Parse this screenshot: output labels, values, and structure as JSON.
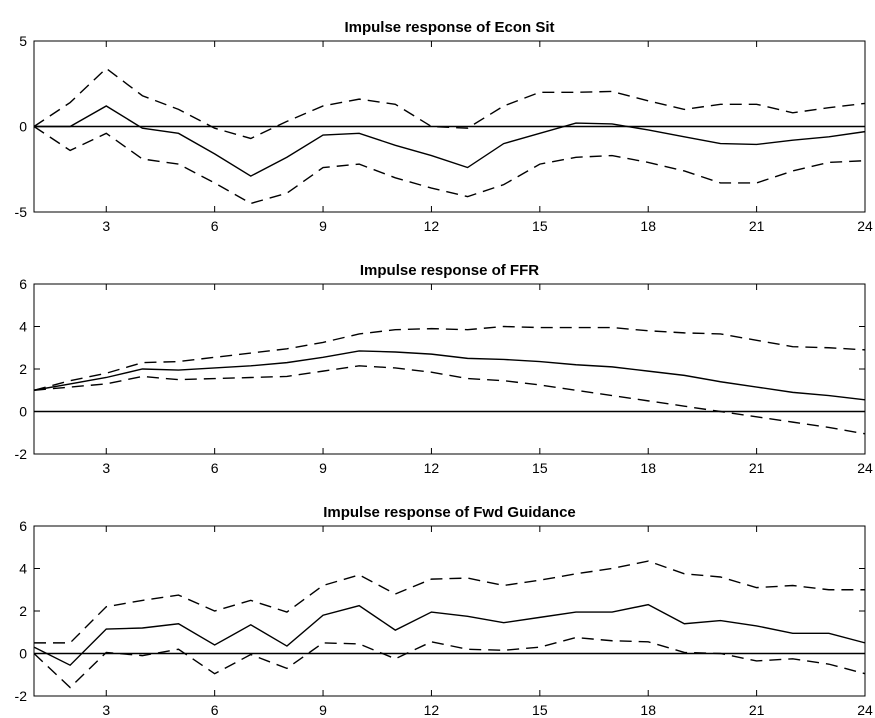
{
  "chart_data": [
    {
      "type": "line",
      "title": "Impulse response of Econ Sit",
      "xlabel": "",
      "ylabel": "",
      "xlim": [
        1,
        24
      ],
      "ylim": [
        -5,
        5
      ],
      "xticks": [
        3,
        6,
        9,
        12,
        15,
        18,
        21,
        24
      ],
      "yticks": [
        -5,
        0,
        5
      ],
      "zero_line": true,
      "grid": false,
      "x": [
        1,
        2,
        3,
        4,
        5,
        6,
        7,
        8,
        9,
        10,
        11,
        12,
        13,
        14,
        15,
        16,
        17,
        18,
        19,
        20,
        21,
        22,
        23,
        24
      ],
      "series": [
        {
          "style": "solid",
          "values": [
            0,
            0,
            1.2,
            -0.1,
            -0.4,
            -1.6,
            -2.9,
            -1.8,
            -0.5,
            -0.4,
            -1.1,
            -1.7,
            -2.4,
            -1.0,
            -0.4,
            0.2,
            0.15,
            -0.2,
            -0.6,
            -1.0,
            -1.05,
            -0.8,
            -0.6,
            -0.3
          ]
        },
        {
          "style": "dashed",
          "values": [
            0,
            1.4,
            3.4,
            1.8,
            1.0,
            -0.1,
            -0.7,
            0.3,
            1.2,
            1.6,
            1.3,
            0.0,
            -0.1,
            1.2,
            2.0,
            2.0,
            2.05,
            1.5,
            1.0,
            1.3,
            1.3,
            0.8,
            1.1,
            1.35
          ]
        },
        {
          "style": "dashed",
          "values": [
            0,
            -1.4,
            -0.4,
            -1.9,
            -2.2,
            -3.3,
            -4.5,
            -3.9,
            -2.4,
            -2.2,
            -3.0,
            -3.6,
            -4.1,
            -3.4,
            -2.2,
            -1.8,
            -1.7,
            -2.1,
            -2.6,
            -3.3,
            -3.3,
            -2.6,
            -2.1,
            -2.0
          ]
        }
      ]
    },
    {
      "type": "line",
      "title": "Impulse response of FFR",
      "xlabel": "",
      "ylabel": "",
      "xlim": [
        1,
        24
      ],
      "ylim": [
        -2,
        6
      ],
      "xticks": [
        3,
        6,
        9,
        12,
        15,
        18,
        21,
        24
      ],
      "yticks": [
        -2,
        0,
        2,
        4,
        6
      ],
      "zero_line": true,
      "grid": false,
      "x": [
        1,
        2,
        3,
        4,
        5,
        6,
        7,
        8,
        9,
        10,
        11,
        12,
        13,
        14,
        15,
        16,
        17,
        18,
        19,
        20,
        21,
        22,
        23,
        24
      ],
      "series": [
        {
          "style": "solid",
          "values": [
            1.0,
            1.3,
            1.6,
            2.0,
            1.95,
            2.05,
            2.15,
            2.3,
            2.55,
            2.85,
            2.8,
            2.7,
            2.5,
            2.45,
            2.35,
            2.2,
            2.1,
            1.9,
            1.7,
            1.4,
            1.15,
            0.9,
            0.75,
            0.55
          ]
        },
        {
          "style": "dashed",
          "values": [
            1.0,
            1.45,
            1.8,
            2.3,
            2.35,
            2.55,
            2.75,
            2.95,
            3.25,
            3.65,
            3.85,
            3.9,
            3.85,
            4.0,
            3.95,
            3.95,
            3.95,
            3.8,
            3.7,
            3.65,
            3.35,
            3.05,
            3.0,
            2.9
          ]
        },
        {
          "style": "dashed",
          "values": [
            1.0,
            1.15,
            1.3,
            1.65,
            1.5,
            1.55,
            1.6,
            1.65,
            1.9,
            2.15,
            2.05,
            1.85,
            1.55,
            1.45,
            1.25,
            1.0,
            0.75,
            0.5,
            0.25,
            0.0,
            -0.25,
            -0.5,
            -0.75,
            -1.05
          ]
        }
      ]
    },
    {
      "type": "line",
      "title": "Impulse response of Fwd Guidance",
      "xlabel": "",
      "ylabel": "",
      "xlim": [
        1,
        24
      ],
      "ylim": [
        -2,
        6
      ],
      "xticks": [
        3,
        6,
        9,
        12,
        15,
        18,
        21,
        24
      ],
      "yticks": [
        -2,
        0,
        2,
        4,
        6
      ],
      "zero_line": true,
      "grid": false,
      "x": [
        1,
        2,
        3,
        4,
        5,
        6,
        7,
        8,
        9,
        10,
        11,
        12,
        13,
        14,
        15,
        16,
        17,
        18,
        19,
        20,
        21,
        22,
        23,
        24
      ],
      "series": [
        {
          "style": "solid",
          "values": [
            0.3,
            -0.55,
            1.15,
            1.2,
            1.4,
            0.4,
            1.35,
            0.35,
            1.8,
            2.25,
            1.1,
            1.95,
            1.75,
            1.45,
            1.7,
            1.95,
            1.95,
            2.3,
            1.4,
            1.55,
            1.3,
            0.95,
            0.95,
            0.5
          ]
        },
        {
          "style": "dashed",
          "values": [
            0.5,
            0.5,
            2.2,
            2.5,
            2.75,
            2.0,
            2.5,
            1.95,
            3.2,
            3.7,
            2.8,
            3.5,
            3.55,
            3.2,
            3.45,
            3.75,
            4.0,
            4.35,
            3.75,
            3.6,
            3.1,
            3.2,
            3.0,
            3.0
          ]
        },
        {
          "style": "dashed",
          "values": [
            0.0,
            -1.6,
            0.05,
            -0.1,
            0.2,
            -0.95,
            -0.05,
            -0.7,
            0.5,
            0.45,
            -0.25,
            0.55,
            0.2,
            0.15,
            0.3,
            0.75,
            0.6,
            0.55,
            0.05,
            0.0,
            -0.35,
            -0.25,
            -0.5,
            -0.95
          ]
        }
      ]
    }
  ]
}
